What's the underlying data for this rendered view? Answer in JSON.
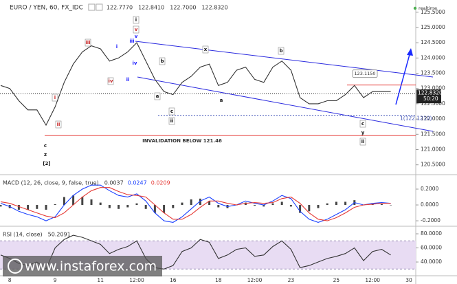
{
  "chart_data": [
    {
      "type": "line",
      "title": "EURO / YEN, 60, FX_IDC",
      "ohlc": [
        "122.7770",
        "122.8410",
        "122.7000",
        "122.8320"
      ],
      "status": "realtime",
      "countdown": "50:20",
      "watermark": "www.instaforex.com",
      "categories": [
        null,
        "8",
        null,
        null,
        null,
        null,
        "9",
        null,
        null,
        null,
        null,
        "11",
        null,
        null,
        null,
        "12:00",
        null,
        null,
        null,
        "16",
        null,
        null,
        null,
        null,
        "18",
        null,
        null,
        null,
        "12:00",
        null,
        null,
        null,
        "23",
        null,
        null,
        null,
        null,
        "25",
        null,
        null,
        null,
        "12:00",
        null,
        null,
        null,
        "30"
      ],
      "series": [
        {
          "color": "#333333",
          "values": [
            123.1,
            123.0,
            122.6,
            122.3,
            122.3,
            121.8,
            122.4,
            123.2,
            123.8,
            124.2,
            124.4,
            124.3,
            123.9,
            124.0,
            124.2,
            124.5,
            123.9,
            123.3,
            122.9,
            122.8,
            123.2,
            123.4,
            123.7,
            123.8,
            123.1,
            123.2,
            123.6,
            123.7,
            123.3,
            123.2,
            123.7,
            123.9,
            123.6,
            122.7,
            122.5,
            122.5,
            122.6,
            122.6,
            122.8,
            123.1,
            122.7,
            122.9,
            122.9,
            122.9,
            null,
            null
          ]
        }
      ],
      "ylim": [
        120.2,
        125.9
      ],
      "yticks": [
        {
          "value": 125.5,
          "label": "125.5000"
        },
        {
          "value": 125,
          "label": "125.0000"
        },
        {
          "value": 124.5,
          "label": "124.5000"
        },
        {
          "value": 124,
          "label": "124.0000"
        },
        {
          "value": 123.5,
          "label": "123.5000"
        },
        {
          "value": 123,
          "label": "123.0000"
        },
        {
          "value": 122.5,
          "label": "122.5000"
        },
        {
          "value": 122,
          "label": "122.0000"
        },
        {
          "value": 121.5,
          "label": "121.5000"
        },
        {
          "value": 121,
          "label": "121.0000"
        },
        {
          "value": 120.5,
          "label": "120.5000"
        }
      ],
      "last_price": {
        "value": 122.832,
        "label": "122.8320"
      },
      "levels": [
        {
          "value": 123.115,
          "label": "123.1150",
          "color": "#e53935"
        },
        {
          "value": 122.121,
          "label": "1(122.1210)",
          "color": "#3f51b5"
        },
        {
          "value": 121.46,
          "label": "INVALIDATION BELOW 121.46",
          "color": "#e53935"
        }
      ],
      "wave_labels": [
        "i",
        "v",
        "v",
        "iii",
        "i",
        "iii",
        "iv",
        "ii",
        "iv",
        "b",
        "a",
        "c",
        "ii",
        "x",
        "b",
        "a",
        "i",
        "ii",
        "c",
        "z",
        "[2]",
        "c",
        "y",
        "ii"
      ]
    },
    {
      "type": "macd",
      "title": "MACD (12, 26, close, 9, false, true)",
      "header_values": [
        {
          "label": "0.0037",
          "color": "#333333"
        },
        {
          "label": "0.0247",
          "color": "#1a3fff"
        },
        {
          "label": "0.0209",
          "color": "#e53935"
        }
      ],
      "histogram": [
        -0.02,
        -0.04,
        -0.06,
        -0.06,
        -0.05,
        -0.06,
        0.01,
        0.1,
        0.12,
        0.1,
        0.07,
        0.03,
        -0.04,
        -0.05,
        -0.03,
        0.02,
        -0.05,
        -0.1,
        -0.1,
        -0.04,
        0.03,
        0.07,
        0.08,
        0.05,
        -0.03,
        -0.04,
        0,
        0.03,
        -0.01,
        -0.02,
        0.02,
        0.04,
        -0.02,
        -0.1,
        -0.08,
        -0.04,
        0.02,
        0.04,
        0.04,
        0.06,
        0,
        0.01,
        0.01,
        0,
        null,
        null
      ],
      "series": [
        {
          "color": "#1a3fff",
          "values": [
            0.02,
            -0.02,
            -0.08,
            -0.12,
            -0.15,
            -0.2,
            -0.15,
            0,
            0.12,
            0.2,
            0.25,
            0.25,
            0.18,
            0.12,
            0.1,
            0.14,
            0.05,
            -0.1,
            -0.2,
            -0.22,
            -0.15,
            -0.05,
            0.05,
            0.1,
            0.02,
            -0.02,
            0,
            0.05,
            0.02,
            0,
            0.05,
            0.12,
            0.08,
            -0.08,
            -0.18,
            -0.22,
            -0.18,
            -0.12,
            -0.06,
            0.03,
            0,
            0.02,
            0.03,
            0.02,
            null,
            null
          ]
        },
        {
          "color": "#e53935",
          "values": [
            0.04,
            0.02,
            -0.02,
            -0.06,
            -0.1,
            -0.14,
            -0.16,
            -0.1,
            0,
            0.1,
            0.18,
            0.22,
            0.22,
            0.17,
            0.13,
            0.12,
            0.1,
            0,
            -0.1,
            -0.18,
            -0.18,
            -0.12,
            -0.03,
            0.05,
            0.05,
            0.02,
            0,
            0.02,
            0.03,
            0.02,
            0.03,
            0.08,
            0.1,
            0.02,
            -0.1,
            -0.18,
            -0.2,
            -0.16,
            -0.1,
            -0.03,
            0,
            0.01,
            0.02,
            0.02,
            null,
            null
          ]
        }
      ],
      "ylim": [
        -0.26,
        0.365
      ],
      "yticks": [
        {
          "value": 0.2,
          "label": "0.2000"
        },
        {
          "value": 0,
          "label": "0.0000"
        },
        {
          "value": -0.2,
          "label": "-0.2000"
        }
      ]
    },
    {
      "type": "line",
      "title": "RSI (14, close)",
      "header_values": [
        {
          "label": "50.2091",
          "color": "#333333"
        }
      ],
      "band": [
        30,
        70
      ],
      "series": [
        {
          "color": "#333333",
          "values": [
            50,
            45,
            38,
            35,
            40,
            30,
            60,
            72,
            78,
            75,
            70,
            65,
            52,
            58,
            62,
            70,
            45,
            32,
            30,
            35,
            55,
            60,
            72,
            68,
            45,
            50,
            58,
            60,
            48,
            50,
            62,
            70,
            58,
            32,
            35,
            40,
            45,
            48,
            52,
            60,
            42,
            55,
            58,
            50,
            null,
            null
          ]
        }
      ],
      "ylim": [
        21.5,
        88.8
      ],
      "yticks": [
        {
          "value": 80,
          "label": "80.0000"
        },
        {
          "value": 60,
          "label": "60.0000"
        },
        {
          "value": 40,
          "label": "40.0000"
        }
      ]
    }
  ]
}
